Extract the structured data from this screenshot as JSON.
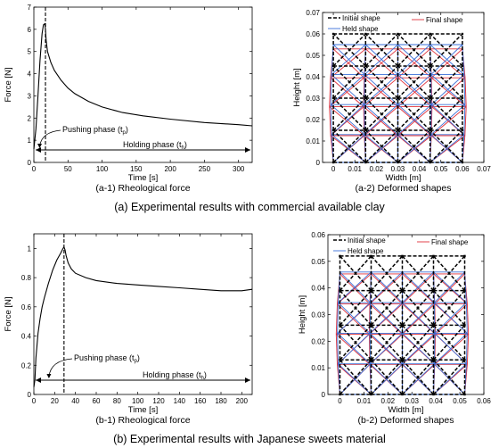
{
  "captions": {
    "a": "(a) Experimental results with commercial available clay",
    "b": "(b) Experimental results with Japanese sweets material"
  },
  "chart_data": [
    {
      "id": "a1",
      "type": "line",
      "title": "(a-1) Rheological force",
      "xlabel": "Time [s]",
      "ylabel": "Force [N]",
      "xlim": [
        0,
        320
      ],
      "ylim": [
        0,
        7
      ],
      "xticks": [
        0,
        50,
        100,
        150,
        200,
        250,
        300
      ],
      "yticks": [
        0,
        1,
        2,
        3,
        4,
        5,
        6,
        7
      ],
      "series": [
        {
          "x": [
            0,
            3,
            6,
            9,
            12,
            14,
            16,
            17,
            18,
            20,
            25,
            30,
            40,
            50,
            60,
            80,
            100,
            130,
            160,
            200,
            250,
            300,
            320
          ],
          "y": [
            0.6,
            1.5,
            3.0,
            4.6,
            5.8,
            6.2,
            6.25,
            6.0,
            5.5,
            5.0,
            4.5,
            4.15,
            3.7,
            3.35,
            3.1,
            2.75,
            2.5,
            2.25,
            2.1,
            1.95,
            1.8,
            1.7,
            1.65
          ]
        }
      ],
      "vline_x": 17,
      "annotations": {
        "push_label": "Pushing phase (t",
        "push_sub": "p",
        "hold_label": "Holding phase (t",
        "hold_sub": "h",
        "close": ")"
      }
    },
    {
      "id": "b1",
      "type": "line",
      "title": "(b-1) Rheological force",
      "xlabel": "Time [s]",
      "ylabel": "Force [N]",
      "xlim": [
        0,
        210
      ],
      "ylim": [
        0,
        1.1
      ],
      "xticks": [
        0,
        20,
        40,
        60,
        80,
        100,
        120,
        140,
        160,
        180,
        200
      ],
      "yticks": [
        0,
        0.2,
        0.4,
        0.6,
        0.8,
        1
      ],
      "series": [
        {
          "x": [
            0,
            1,
            2,
            4,
            6,
            8,
            10,
            14,
            18,
            22,
            26,
            28,
            29,
            30,
            31,
            33,
            36,
            40,
            50,
            60,
            80,
            100,
            120,
            140,
            160,
            180,
            200,
            210
          ],
          "y": [
            0.05,
            0.1,
            0.25,
            0.42,
            0.52,
            0.6,
            0.66,
            0.76,
            0.85,
            0.92,
            0.97,
            1.0,
            1.01,
            0.99,
            0.95,
            0.9,
            0.86,
            0.83,
            0.8,
            0.78,
            0.76,
            0.75,
            0.74,
            0.73,
            0.72,
            0.71,
            0.71,
            0.72
          ]
        }
      ],
      "vline_x": 29,
      "annotations": {
        "push_label": "Pushing phase (t",
        "push_sub": "p",
        "hold_label": "Holding phase (t",
        "hold_sub": "h",
        "close": ")"
      }
    },
    {
      "id": "a2",
      "type": "line",
      "title": "(a-2) Deformed shapes",
      "xlabel": "Width [m]",
      "ylabel": "Height [m]",
      "xlim": [
        -0.005,
        0.07
      ],
      "ylim": [
        0,
        0.07
      ],
      "xticks": [
        0,
        0.01,
        0.02,
        0.03,
        0.04,
        0.05,
        0.06,
        0.07
      ],
      "yticks": [
        0,
        0.01,
        0.02,
        0.03,
        0.04,
        0.05,
        0.06,
        0.07
      ],
      "legend": [
        "Initial shape",
        "Held shape",
        "Final shape"
      ],
      "grid": {
        "initial": {
          "x": [
            0,
            0.015,
            0.03,
            0.045,
            0.06
          ],
          "y": [
            0,
            0.015,
            0.03,
            0.045,
            0.06
          ]
        },
        "held": {
          "x": [
            0,
            0.015,
            0.03,
            0.045,
            0.06
          ],
          "y": [
            0,
            0.013,
            0.027,
            0.041,
            0.055
          ]
        },
        "final": {
          "x": [
            0,
            0.015,
            0.03,
            0.045,
            0.06
          ],
          "y": [
            0,
            0.0125,
            0.026,
            0.0395,
            0.053
          ]
        }
      }
    },
    {
      "id": "b2",
      "type": "line",
      "title": "(b-2) Deformed shapes",
      "xlabel": "Width [m]",
      "ylabel": "Height [m]",
      "xlim": [
        -0.005,
        0.06
      ],
      "ylim": [
        0,
        0.06
      ],
      "xticks": [
        0,
        0.01,
        0.02,
        0.03,
        0.04,
        0.05,
        0.06
      ],
      "yticks": [
        0,
        0.01,
        0.02,
        0.03,
        0.04,
        0.05,
        0.06
      ],
      "legend": [
        "Initial shape",
        "Held shape",
        "Final shape"
      ],
      "grid": {
        "initial": {
          "x": [
            0,
            0.013,
            0.026,
            0.039,
            0.052
          ],
          "y": [
            0,
            0.013,
            0.026,
            0.039,
            0.052
          ]
        },
        "held": {
          "x": [
            0,
            0.013,
            0.026,
            0.039,
            0.052
          ],
          "y": [
            0,
            0.0115,
            0.023,
            0.0345,
            0.046
          ]
        },
        "final": {
          "x": [
            0,
            0.013,
            0.026,
            0.039,
            0.052
          ],
          "y": [
            0,
            0.0113,
            0.0226,
            0.034,
            0.0453
          ]
        }
      }
    }
  ]
}
